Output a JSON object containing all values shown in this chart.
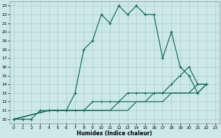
{
  "xlabel": "Humidex (Indice chaleur)",
  "bg_color": "#cce8e8",
  "grid_color": "#aacccc",
  "line_color": "#1a6b5a",
  "xlim": [
    -0.5,
    23.5
  ],
  "ylim": [
    9.5,
    23.5
  ],
  "xticks": [
    0,
    1,
    2,
    3,
    4,
    5,
    6,
    7,
    8,
    9,
    10,
    11,
    12,
    13,
    14,
    15,
    16,
    17,
    18,
    19,
    20,
    21,
    22,
    23
  ],
  "yticks": [
    10,
    11,
    12,
    13,
    14,
    15,
    16,
    17,
    18,
    19,
    20,
    21,
    22,
    23
  ],
  "line1_x": [
    0,
    1,
    2,
    3,
    4,
    5,
    6,
    7,
    8,
    9,
    10,
    11,
    12,
    13,
    14,
    15,
    16,
    17,
    18,
    19,
    20,
    21,
    22
  ],
  "line1_y": [
    10,
    10,
    10,
    11,
    11,
    11,
    11,
    13,
    18,
    19,
    22,
    21,
    23,
    22,
    23,
    22,
    22,
    17,
    20,
    16,
    15,
    13,
    14
  ],
  "line2_x": [
    0,
    4,
    5,
    6,
    7,
    8,
    9,
    10,
    11,
    12,
    13,
    14,
    15,
    16,
    17,
    18,
    19,
    20,
    21,
    22
  ],
  "line2_y": [
    10,
    11,
    11,
    11,
    11,
    11,
    12,
    12,
    12,
    12,
    13,
    13,
    13,
    13,
    13,
    14,
    15,
    16,
    14,
    14
  ],
  "line3_x": [
    0,
    4,
    5,
    6,
    7,
    8,
    9,
    10,
    11,
    12,
    13,
    14,
    15,
    16,
    17,
    18,
    19,
    20,
    21,
    22
  ],
  "line3_y": [
    10,
    11,
    11,
    11,
    11,
    11,
    11,
    11,
    11,
    12,
    12,
    12,
    12,
    13,
    13,
    13,
    13,
    13,
    14,
    14
  ],
  "line4_x": [
    0,
    4,
    5,
    6,
    7,
    8,
    9,
    10,
    11,
    12,
    13,
    14,
    15,
    16,
    17,
    18,
    19,
    20,
    21,
    22
  ],
  "line4_y": [
    10,
    11,
    11,
    11,
    11,
    11,
    11,
    11,
    11,
    11,
    11,
    12,
    12,
    12,
    12,
    13,
    13,
    13,
    13,
    14
  ]
}
